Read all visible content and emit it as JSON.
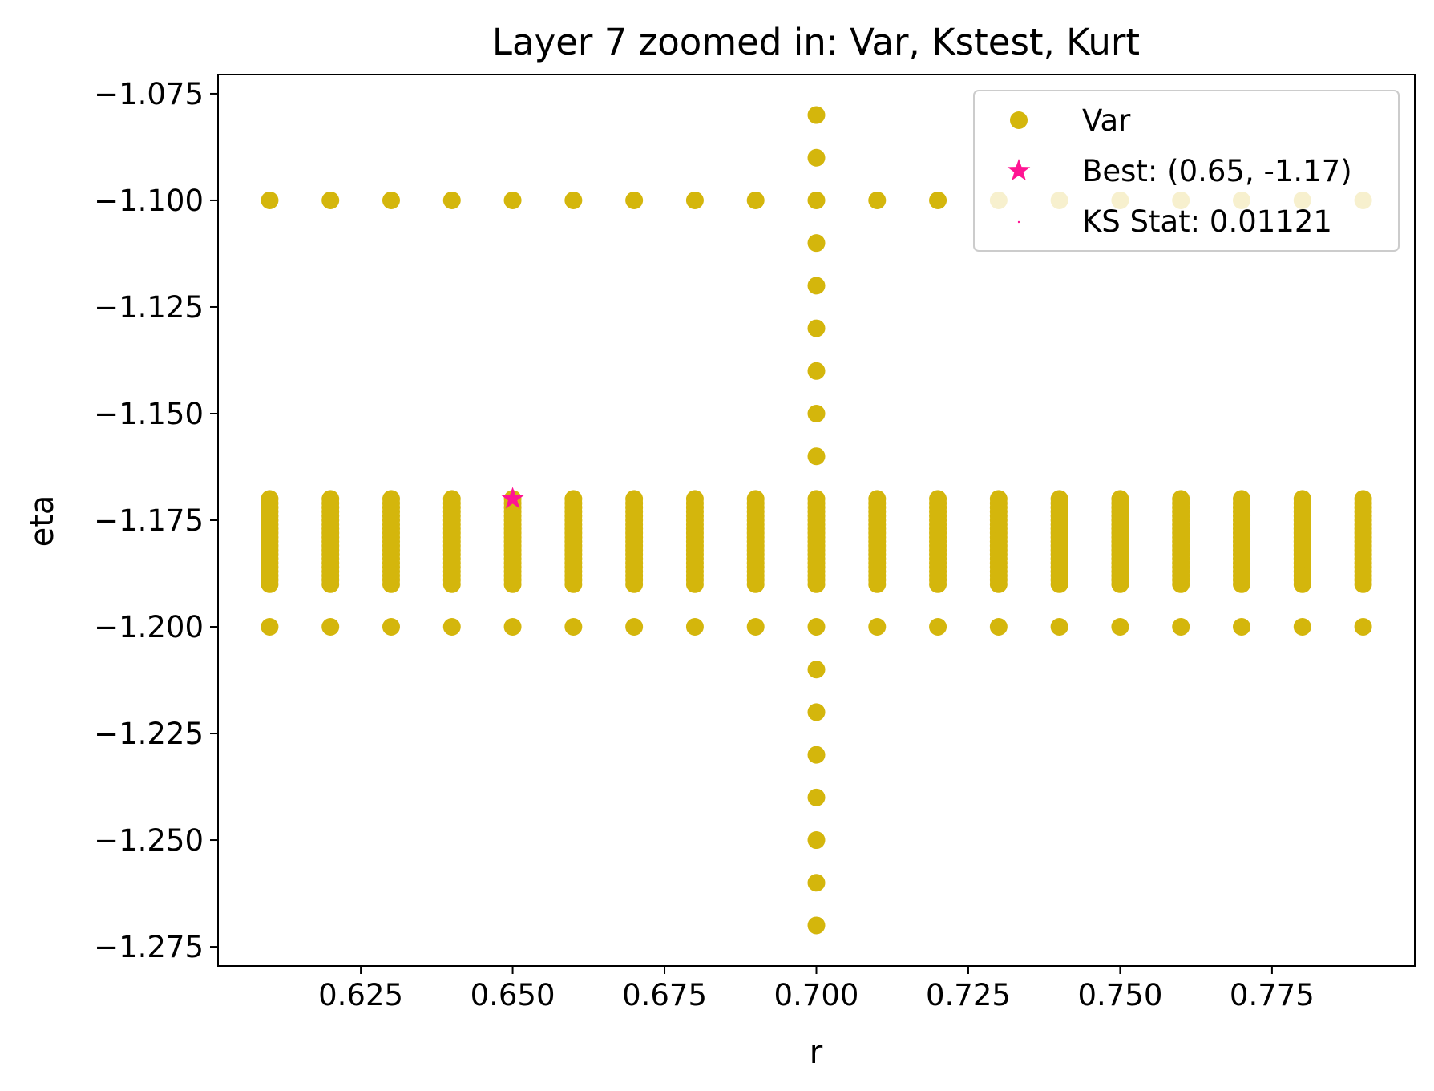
{
  "chart_data": {
    "type": "scatter",
    "title": "Layer 7 zoomed in: Var, Kstest, Kurt",
    "xlabel": "r",
    "ylabel": "eta",
    "xlim": [
      0.6015,
      0.7985
    ],
    "ylim": [
      -1.2795,
      -1.0705
    ],
    "xticks": [
      0.625,
      0.65,
      0.675,
      0.7,
      0.725,
      0.75,
      0.775
    ],
    "xtick_labels": [
      "0.625",
      "0.650",
      "0.675",
      "0.700",
      "0.725",
      "0.750",
      "0.775"
    ],
    "yticks": [
      -1.075,
      -1.1,
      -1.125,
      -1.15,
      -1.175,
      -1.2,
      -1.225,
      -1.25,
      -1.275
    ],
    "ytick_labels": [
      "−1.075",
      "−1.100",
      "−1.125",
      "−1.150",
      "−1.175",
      "−1.200",
      "−1.225",
      "−1.250",
      "−1.275"
    ],
    "grid": false,
    "legend_position": "top-right",
    "series": [
      {
        "name": "Var",
        "marker": "circle",
        "color": "#d4b60c",
        "r_values": [
          0.61,
          0.62,
          0.63,
          0.64,
          0.65,
          0.66,
          0.67,
          0.68,
          0.69,
          0.7,
          0.71,
          0.72,
          0.73,
          0.74,
          0.75,
          0.76,
          0.77,
          0.78,
          0.79
        ],
        "eta_row_values": [
          -1.1,
          -1.2
        ],
        "eta_dense_band": [
          -1.19,
          -1.17
        ],
        "eta_dense_step": 0.001,
        "r_vertical_column": 0.7,
        "eta_vertical_values": [
          -1.08,
          -1.09,
          -1.11,
          -1.12,
          -1.13,
          -1.14,
          -1.15,
          -1.16,
          -1.21,
          -1.22,
          -1.23,
          -1.24,
          -1.25,
          -1.26,
          -1.27
        ]
      },
      {
        "name": "Best: (0.65, -1.17)",
        "marker": "star",
        "color": "#ff1493",
        "points": [
          [
            0.65,
            -1.17
          ]
        ]
      },
      {
        "name": "KS Stat: 0.01121",
        "marker": "point",
        "color": "#ff1493",
        "points": []
      }
    ]
  }
}
